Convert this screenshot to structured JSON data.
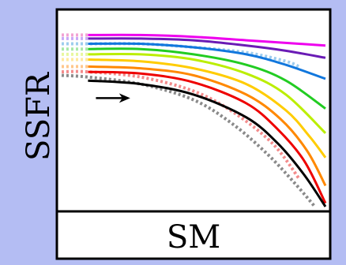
{
  "chart_data": {
    "type": "line",
    "title": "",
    "xlabel": "SM",
    "ylabel": "SSFR",
    "grid": false,
    "legend": "none",
    "x_ticks": false,
    "y_ticks": false,
    "arrow": {
      "from": [
        0.13,
        0.62
      ],
      "to": [
        0.26,
        0.62
      ],
      "color": "#000000"
    },
    "series": [
      {
        "color": "#ee00ee",
        "style": "solid",
        "x": [
          0.1,
          0.3,
          0.5,
          0.7,
          0.9,
          1.0
        ],
        "y": [
          0.98,
          0.98,
          0.97,
          0.95,
          0.93,
          0.92
        ]
      },
      {
        "color": "#6a1bb5",
        "style": "solid",
        "x": [
          0.1,
          0.3,
          0.5,
          0.7,
          0.85,
          1.0
        ],
        "y": [
          0.96,
          0.96,
          0.95,
          0.92,
          0.89,
          0.85
        ]
      },
      {
        "color": "#1177dd",
        "style": "solid",
        "x": [
          0.1,
          0.3,
          0.5,
          0.7,
          0.85,
          1.0
        ],
        "y": [
          0.93,
          0.93,
          0.91,
          0.87,
          0.81,
          0.73
        ]
      },
      {
        "color": "#22cc22",
        "style": "solid",
        "x": [
          0.1,
          0.3,
          0.5,
          0.7,
          0.85,
          1.0
        ],
        "y": [
          0.9,
          0.9,
          0.87,
          0.81,
          0.72,
          0.56
        ]
      },
      {
        "color": "#bbee00",
        "style": "solid",
        "x": [
          0.1,
          0.3,
          0.5,
          0.7,
          0.85,
          1.0
        ],
        "y": [
          0.87,
          0.87,
          0.84,
          0.76,
          0.64,
          0.42
        ]
      },
      {
        "color": "#ffcc00",
        "style": "solid",
        "x": [
          0.1,
          0.3,
          0.5,
          0.7,
          0.85,
          0.94,
          1.0
        ],
        "y": [
          0.84,
          0.83,
          0.79,
          0.7,
          0.55,
          0.4,
          0.28
        ]
      },
      {
        "color": "#ff8800",
        "style": "solid",
        "x": [
          0.1,
          0.3,
          0.5,
          0.7,
          0.83,
          0.93,
          1.0
        ],
        "y": [
          0.8,
          0.79,
          0.75,
          0.64,
          0.5,
          0.32,
          0.12
        ]
      },
      {
        "color": "#ee0000",
        "style": "solid",
        "x": [
          0.1,
          0.3,
          0.5,
          0.7,
          0.82,
          0.92,
          1.0
        ],
        "y": [
          0.77,
          0.76,
          0.71,
          0.59,
          0.44,
          0.26,
          0.02
        ]
      },
      {
        "color": "#000000",
        "style": "solid",
        "x": [
          0.1,
          0.3,
          0.5,
          0.7,
          0.82,
          0.92,
          1.0
        ],
        "y": [
          0.72,
          0.7,
          0.64,
          0.51,
          0.36,
          0.18,
          0.0
        ]
      },
      {
        "color": "#f2a3d4",
        "style": "dotted",
        "x": [
          0.0,
          0.1
        ],
        "y": [
          0.98,
          0.98
        ]
      },
      {
        "color": "#c9a9f7",
        "style": "dotted",
        "x": [
          0.0,
          0.1
        ],
        "y": [
          0.96,
          0.96
        ]
      },
      {
        "color": "#9dccee",
        "style": "dotted",
        "x": [
          0.0,
          0.1,
          0.3,
          0.5,
          0.7,
          0.85,
          0.9
        ],
        "y": [
          0.93,
          0.93,
          0.93,
          0.91,
          0.88,
          0.83,
          0.8
        ]
      },
      {
        "color": "#a7e8a7",
        "style": "dotted",
        "x": [
          0.0,
          0.1
        ],
        "y": [
          0.9,
          0.9
        ]
      },
      {
        "color": "#e8f79e",
        "style": "dotted",
        "x": [
          0.0,
          0.1
        ],
        "y": [
          0.87,
          0.87
        ]
      },
      {
        "color": "#ffe89e",
        "style": "dotted",
        "x": [
          0.0,
          0.1
        ],
        "y": [
          0.84,
          0.84
        ]
      },
      {
        "color": "#ffc78c",
        "style": "dotted",
        "x": [
          0.0,
          0.1
        ],
        "y": [
          0.8,
          0.8
        ]
      },
      {
        "color": "#f38b8b",
        "style": "dotted",
        "x": [
          0.0,
          0.1,
          0.3,
          0.5,
          0.65,
          0.8,
          0.9
        ],
        "y": [
          0.77,
          0.77,
          0.74,
          0.66,
          0.54,
          0.36,
          0.16
        ]
      },
      {
        "color": "#8a8a8a",
        "style": "dotted",
        "x": [
          0.0,
          0.1,
          0.3,
          0.5,
          0.65,
          0.78,
          0.88,
          0.96
        ],
        "y": [
          0.75,
          0.74,
          0.7,
          0.61,
          0.47,
          0.3,
          0.14,
          0.0
        ]
      }
    ]
  }
}
